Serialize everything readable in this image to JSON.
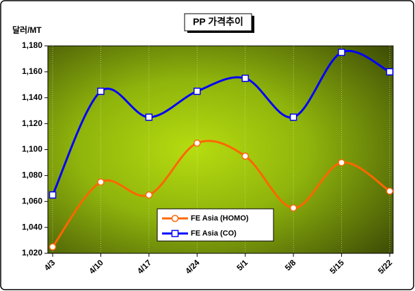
{
  "chart_data": {
    "type": "line",
    "title": "PP 가격추이",
    "y_label": "달러/MT",
    "categories": [
      "4/3",
      "4/10",
      "4/17",
      "4/24",
      "5/1",
      "5/8",
      "5/15",
      "5/22"
    ],
    "series": [
      {
        "name": "FE Asia (HOMO)",
        "color": "#ff6600",
        "marker": "circle",
        "values": [
          1025,
          1075,
          1065,
          1105,
          1095,
          1055,
          1090,
          1068
        ]
      },
      {
        "name": "FE Asia (CO)",
        "color": "#0000ff",
        "marker": "square",
        "values": [
          1065,
          1145,
          1125,
          1145,
          1155,
          1125,
          1175,
          1160
        ]
      }
    ],
    "ylim": [
      1020,
      1180
    ],
    "yticks": [
      {
        "value": 1020,
        "label": "1,020"
      },
      {
        "value": 1040,
        "label": "1,040"
      },
      {
        "value": 1060,
        "label": "1,060"
      },
      {
        "value": 1080,
        "label": "1,080"
      },
      {
        "value": 1100,
        "label": "1,100"
      },
      {
        "value": 1120,
        "label": "1,120"
      },
      {
        "value": 1140,
        "label": "1,140"
      },
      {
        "value": 1160,
        "label": "1,160"
      },
      {
        "value": 1180,
        "label": "1,180"
      }
    ],
    "smooth": true
  }
}
